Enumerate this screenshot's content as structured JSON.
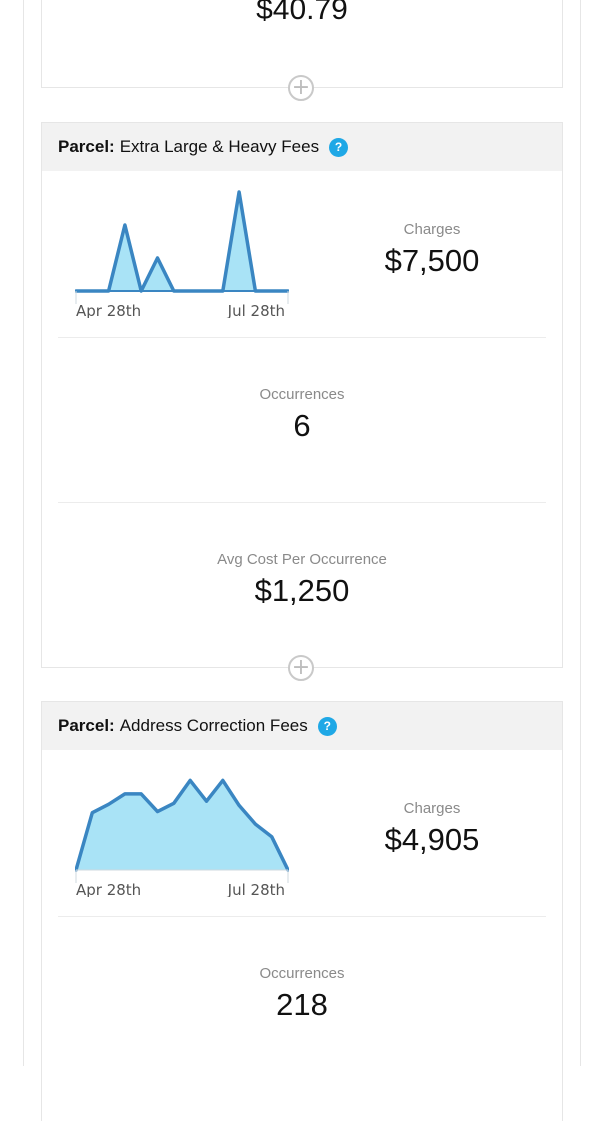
{
  "top_section": {
    "value": "$40.79"
  },
  "sections": [
    {
      "kind": "Parcel:",
      "title": "Extra Large & Heavy Fees",
      "help_symbol": "?",
      "charges_label": "Charges",
      "charges_value": "$7,500",
      "occurrences_label": "Occurrences",
      "occurrences_value": "6",
      "avg_label": "Avg Cost Per Occurrence",
      "avg_value": "$1,250",
      "sparkline": {
        "x_start_label": "Apr 28th",
        "x_end_label": "Jul 28th",
        "values": [
          0,
          0,
          0,
          4,
          0,
          2,
          0,
          0,
          0,
          0,
          6,
          0,
          0,
          0
        ],
        "ylim": [
          0,
          6
        ]
      }
    },
    {
      "kind": "Parcel:",
      "title": "Address Correction Fees",
      "help_symbol": "?",
      "charges_label": "Charges",
      "charges_value": "$4,905",
      "occurrences_label": "Occurrences",
      "occurrences_value": "218",
      "sparkline": {
        "x_start_label": "Apr 28th",
        "x_end_label": "Jul 28th",
        "values": [
          0,
          5.5,
          6.3,
          7.3,
          7.3,
          5.6,
          6.4,
          8.6,
          6.6,
          8.6,
          6.2,
          4.4,
          3.2,
          0
        ],
        "ylim": [
          0,
          9.5
        ]
      }
    }
  ],
  "add_symbol": "+",
  "colors": {
    "line": "#3a86c2",
    "fill": "#a9e3f6",
    "help": "#1fa8e6",
    "header_bg": "#f2f2f2"
  }
}
